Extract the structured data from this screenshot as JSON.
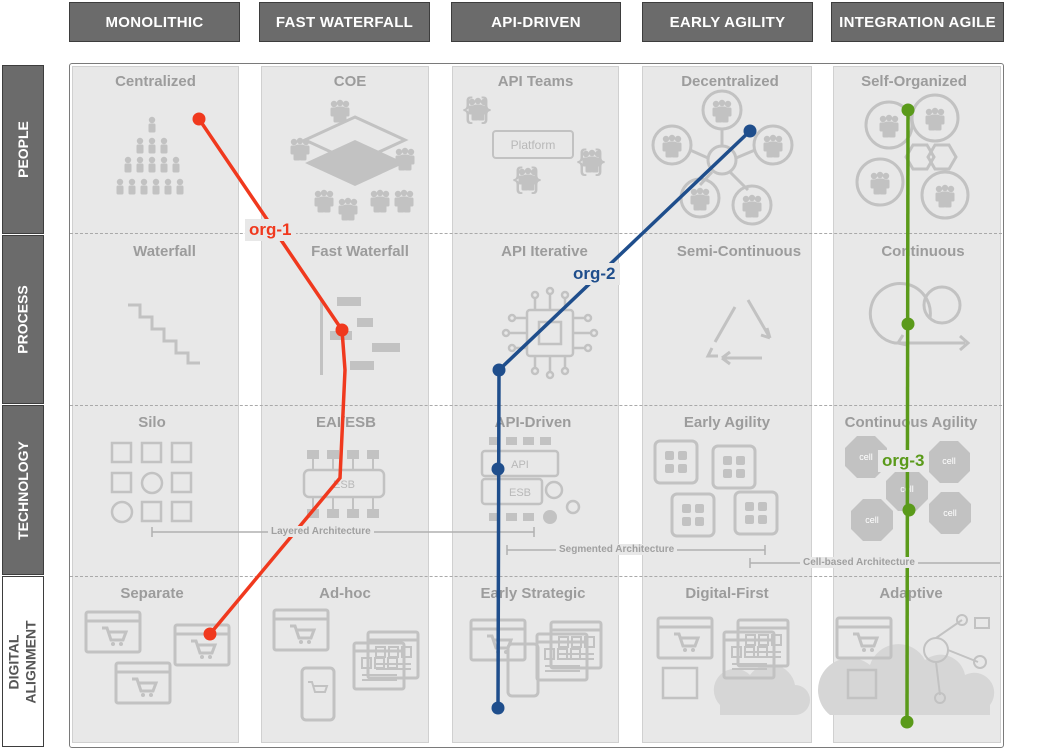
{
  "columns": [
    "MONOLITHIC",
    "FAST WATERFALL",
    "API-DRIVEN",
    "EARLY AGILITY",
    "INTEGRATION AGILE"
  ],
  "rows": [
    "PEOPLE",
    "PROCESS",
    "TECHNOLOGY",
    "DIGITAL ALIGNMENT"
  ],
  "cells": {
    "people": [
      "Centralized",
      "COE",
      "API Teams",
      "Decentralized",
      "Self-Organized"
    ],
    "process": [
      "Waterfall",
      "Fast Waterfall",
      "API Iterative",
      "Semi-Continuous",
      "Continuous"
    ],
    "technology": [
      "Silo",
      "EAI/ESB",
      "API-Driven",
      "Early Agility",
      "Continuous Agility"
    ],
    "digital": [
      "Separate",
      "Ad-hoc",
      "Early Strategic",
      "Digital-First",
      "Adaptive"
    ]
  },
  "icon_labels": {
    "platform": "Platform",
    "api": "API",
    "esb": "ESB",
    "esb_small": "ESB",
    "cell": "cell"
  },
  "architecture": {
    "layered": "Layered Architecture",
    "segmented": "Segmented Architecture",
    "cell_based": "Cell-based Architecture"
  },
  "orgs": [
    {
      "name": "org-1",
      "color": "#f0391e"
    },
    {
      "name": "org-2",
      "color": "#1f4e8c"
    },
    {
      "name": "org-3",
      "color": "#5a9a1a"
    }
  ],
  "colors": {
    "header_bg": "#6b6b6b",
    "cell_bg": "#e8e8e8",
    "icon": "#c2c2c2"
  }
}
